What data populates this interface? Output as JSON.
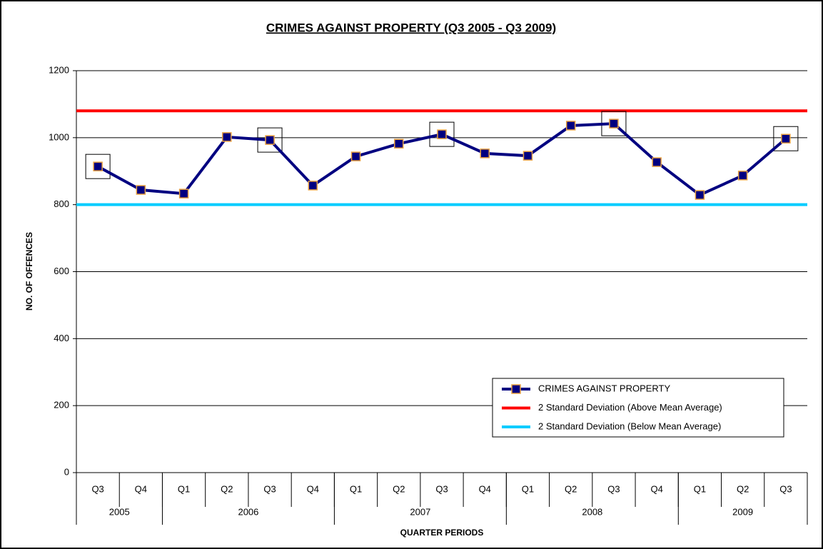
{
  "chart_data": {
    "type": "line",
    "title": "CRIMES AGAINST PROPERTY (Q3 2005 - Q3 2009)",
    "y_label": "NO. OF OFFENCES",
    "x_label": "QUARTER PERIODS",
    "categories": [
      "Q3",
      "Q4",
      "Q1",
      "Q2",
      "Q3",
      "Q4",
      "Q1",
      "Q2",
      "Q3",
      "Q4",
      "Q1",
      "Q2",
      "Q3",
      "Q4",
      "Q1",
      "Q2",
      "Q3"
    ],
    "groups": [
      {
        "label": "2005",
        "count": 2
      },
      {
        "label": "2006",
        "count": 4
      },
      {
        "label": "2007",
        "count": 4
      },
      {
        "label": "2008",
        "count": 4
      },
      {
        "label": "2009",
        "count": 3
      }
    ],
    "series": [
      {
        "name": "CRIMES AGAINST PROPERTY",
        "color": "#000080",
        "marker_edge": "#e8a040",
        "values": [
          914,
          844,
          833,
          1002,
          993,
          857,
          944,
          982,
          1010,
          953,
          946,
          1036,
          1042,
          927,
          829,
          887,
          997
        ]
      }
    ],
    "reference_lines": [
      {
        "name": "2 Standard Deviation (Above Mean Average)",
        "color": "#ff0000",
        "value": 1080
      },
      {
        "name": "2 Standard Deviation (Below Mean Average)",
        "color": "#00ccff",
        "value": 800
      }
    ],
    "highlighted": [
      0,
      4,
      8,
      12,
      16
    ],
    "ylim": [
      0,
      1200
    ],
    "yticks": [
      0,
      200,
      400,
      600,
      800,
      1000,
      1200
    ],
    "grid": true
  }
}
